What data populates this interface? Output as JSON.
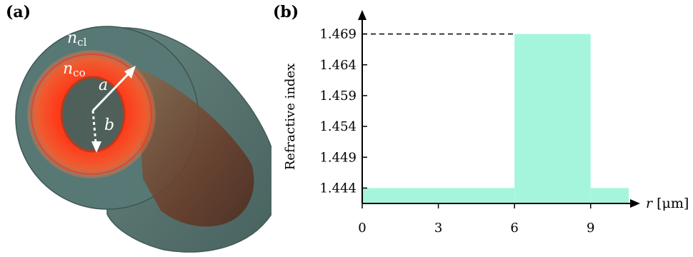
{
  "panels": {
    "a": {
      "label": "(a)"
    },
    "b": {
      "label": "(b)"
    }
  },
  "fiber": {
    "cladding_label": "n",
    "cladding_sub": "cl",
    "core_label": "n",
    "core_sub": "co",
    "outer_radius_label": "a",
    "inner_radius_label": "b",
    "colors": {
      "cladding": "#4f7370",
      "core": "#ff3b1a",
      "inner_hole": "#46635e",
      "tube_body": "#7a4a33"
    }
  },
  "chart_data": {
    "type": "area",
    "title": "",
    "xlabel_var": "r",
    "xlabel_unit": "[μm]",
    "ylabel": "Refractive index",
    "x_ticks": [
      "0",
      "3",
      "6",
      "9"
    ],
    "x_tick_values": [
      0,
      3,
      6,
      9
    ],
    "y_ticks": [
      "1.444",
      "1.449",
      "1.454",
      "1.459",
      "1.464",
      "1.469"
    ],
    "y_tick_values": [
      1.444,
      1.449,
      1.454,
      1.459,
      1.464,
      1.469
    ],
    "xlim": [
      0,
      10.5
    ],
    "ylim": [
      1.4415,
      1.4715
    ],
    "profile": [
      {
        "x0": 0,
        "x1": 6,
        "y": 1.444
      },
      {
        "x0": 6,
        "x1": 9,
        "y": 1.469
      },
      {
        "x0": 9,
        "x1": 10.5,
        "y": 1.444
      }
    ],
    "dashed_reference_y": 1.469,
    "fill_color": "#a5f5dc",
    "grid": false
  }
}
